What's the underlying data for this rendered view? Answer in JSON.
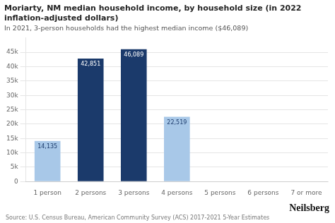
{
  "chart_data": {
    "type": "bar",
    "title": [
      "Moriarty, NM median household income, by household size (in 2022",
      "inflation-adjusted dollars)"
    ],
    "subtitle": "In 2021, 3-person households had the highest median income ($46,089)",
    "annotations": [
      "Source: U.S. Census Bureau, American Community Survey (ACS) 2017-2021 5-Year Estimates",
      "Neilsberg"
    ],
    "categories": [
      "1 person",
      "2 persons",
      "3 persons",
      "4 persons",
      "5 persons",
      "6 persons",
      "7 or more"
    ],
    "values": [
      14135,
      42851,
      46089,
      22519,
      0,
      0,
      0
    ],
    "value_labels": [
      "14,135",
      "42,851",
      "46,089",
      "22,519",
      null,
      null,
      null
    ],
    "data_labels": true,
    "colors": [
      "#a8c8e8",
      "#1b3a6b",
      "#1b3a6b",
      "#a8c8e8",
      "#a8c8e8",
      "#a8c8e8",
      "#a8c8e8"
    ],
    "ylim": [
      0,
      50000
    ],
    "yticks": [
      0,
      {
        "value": 5000,
        "label": "5k"
      },
      {
        "value": 10000,
        "label": "10k"
      },
      {
        "value": 15000,
        "label": "15k"
      },
      {
        "value": 20000,
        "label": "20k"
      },
      {
        "value": 25000,
        "label": "25k"
      },
      {
        "value": 30000,
        "label": "30k"
      },
      {
        "value": 35000,
        "label": "35k"
      },
      {
        "value": 40000,
        "label": "40k"
      },
      {
        "value": 45000,
        "label": "45k"
      }
    ],
    "grid": true
  }
}
